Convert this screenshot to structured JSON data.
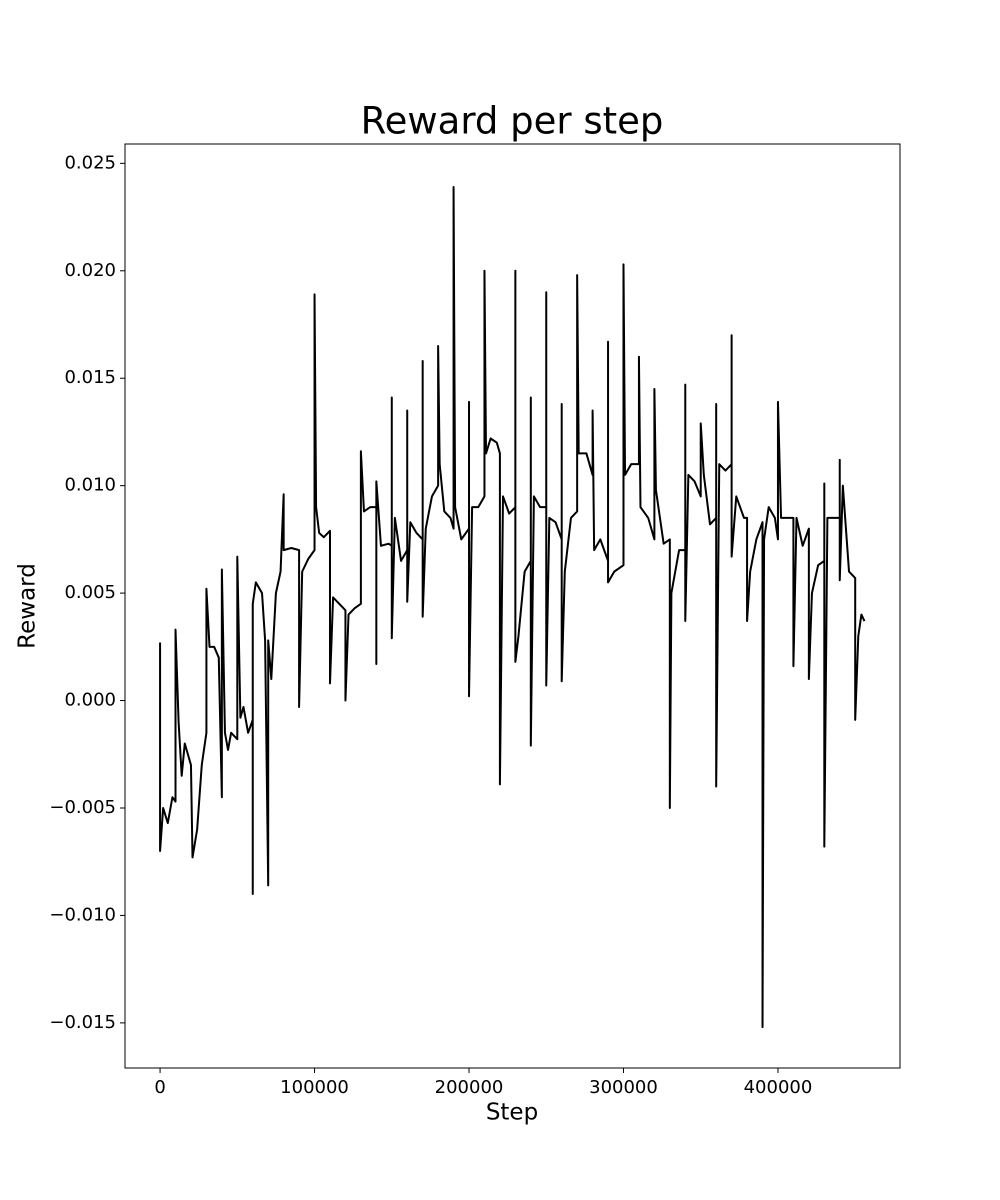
{
  "chart_data": {
    "type": "line",
    "title": "Reward per step",
    "xlabel": "Step",
    "ylabel": "Reward",
    "x": [
      0,
      0,
      2000,
      5000,
      8000,
      10000,
      10000,
      12000,
      14000,
      16000,
      20000,
      21000,
      24000,
      27000,
      30000,
      30000,
      32000,
      35000,
      38000,
      40000,
      40000,
      42000,
      44000,
      46000,
      50000,
      50000,
      52000,
      54000,
      57000,
      60000,
      60000,
      60000,
      62000,
      66000,
      68000,
      70000,
      70000,
      72000,
      75000,
      78000,
      80000,
      80000,
      85000,
      90000,
      90000,
      92000,
      96000,
      100000,
      100000,
      101000,
      103000,
      106000,
      110000,
      110000,
      112000,
      116000,
      120000,
      120000,
      122000,
      126000,
      130000,
      130000,
      132000,
      136000,
      140000,
      140000,
      140000,
      143000,
      148000,
      150000,
      150000,
      150000,
      152000,
      156000,
      160000,
      160000,
      160000,
      162000,
      166000,
      170000,
      170000,
      170000,
      172000,
      176000,
      180000,
      180000,
      181000,
      184000,
      188000,
      190000,
      190000,
      191000,
      195000,
      200000,
      200000,
      200000,
      202000,
      206000,
      210000,
      210000,
      211000,
      214000,
      218000,
      220000,
      220000,
      222000,
      226000,
      230000,
      230000,
      230000,
      232000,
      236000,
      240000,
      240000,
      240000,
      242000,
      246000,
      250000,
      250000,
      250000,
      252000,
      256000,
      260000,
      260000,
      260000,
      262000,
      266000,
      270000,
      270000,
      271000,
      276000,
      280000,
      280000,
      281000,
      285000,
      290000,
      290000,
      290000,
      294000,
      300000,
      300000,
      301000,
      305000,
      310000,
      310000,
      311000,
      316000,
      320000,
      320000,
      321000,
      326000,
      330000,
      330000,
      331000,
      336000,
      340000,
      340000,
      340000,
      342000,
      346000,
      350000,
      350000,
      352000,
      356000,
      360000,
      360000,
      360000,
      362000,
      366000,
      370000,
      370000,
      370000,
      373000,
      378000,
      380000,
      380000,
      382000,
      386000,
      390000,
      390000,
      391000,
      394000,
      398000,
      400000,
      400000,
      402000,
      406000,
      410000,
      410000,
      412000,
      416000,
      420000,
      420000,
      422000,
      426000,
      430000,
      430000,
      430000,
      432000,
      436000,
      440000,
      440000,
      440000,
      442000,
      446000,
      450000,
      450000,
      452000,
      454000,
      456000
    ],
    "series": [
      {
        "color": "#000000",
        "values": [
          0.0027,
          -0.007,
          -0.005,
          -0.0057,
          -0.0045,
          -0.0047,
          0.0033,
          -0.001,
          -0.0035,
          -0.002,
          -0.003,
          -0.0073,
          -0.006,
          -0.003,
          -0.0015,
          0.0052,
          0.0025,
          0.0025,
          0.002,
          -0.0045,
          0.0061,
          -0.0015,
          -0.0023,
          -0.0015,
          -0.0018,
          0.0067,
          -0.0008,
          -0.0003,
          -0.0015,
          -0.0009,
          -0.009,
          0.0045,
          0.0055,
          0.005,
          0.0028,
          -0.0086,
          0.0028,
          0.001,
          0.005,
          0.006,
          0.0096,
          0.007,
          0.0071,
          0.007,
          -0.0003,
          0.006,
          0.0066,
          0.007,
          0.0189,
          0.009,
          0.0078,
          0.0076,
          0.0079,
          0.0008,
          0.0048,
          0.0045,
          0.0042,
          0.0,
          0.004,
          0.0043,
          0.0045,
          0.0116,
          0.0088,
          0.009,
          0.009,
          0.0017,
          0.0102,
          0.0072,
          0.0073,
          0.0072,
          0.0141,
          0.0029,
          0.0085,
          0.0065,
          0.007,
          0.0135,
          0.0046,
          0.0083,
          0.0078,
          0.0075,
          0.0158,
          0.0039,
          0.008,
          0.0095,
          0.01,
          0.0165,
          0.011,
          0.0088,
          0.0085,
          0.008,
          0.0239,
          0.009,
          0.0075,
          0.008,
          0.0139,
          0.0002,
          0.009,
          0.009,
          0.0095,
          0.02,
          0.0115,
          0.0122,
          0.012,
          0.0115,
          -0.0039,
          0.0095,
          0.0087,
          0.009,
          0.02,
          0.0018,
          0.003,
          0.006,
          0.0065,
          0.0141,
          -0.0021,
          0.0095,
          0.009,
          0.009,
          0.019,
          0.0007,
          0.0085,
          0.0083,
          0.0075,
          0.0138,
          0.0009,
          0.006,
          0.0085,
          0.0088,
          0.0198,
          0.0115,
          0.0115,
          0.0105,
          0.0135,
          0.007,
          0.0075,
          0.0065,
          0.0167,
          0.0055,
          0.006,
          0.0063,
          0.0203,
          0.0105,
          0.011,
          0.011,
          0.016,
          0.009,
          0.0085,
          0.0075,
          0.0145,
          0.0098,
          0.0073,
          0.0075,
          -0.005,
          0.005,
          0.007,
          0.007,
          0.0147,
          0.0037,
          0.0105,
          0.0102,
          0.0095,
          0.0129,
          0.0105,
          0.0082,
          0.0085,
          0.0138,
          -0.004,
          0.011,
          0.0107,
          0.011,
          0.017,
          0.0067,
          0.0095,
          0.0085,
          0.0085,
          0.0037,
          0.006,
          0.0075,
          0.0083,
          -0.0152,
          0.0075,
          0.009,
          0.0085,
          0.0075,
          0.0139,
          0.0085,
          0.0085,
          0.0085,
          0.0016,
          0.0085,
          0.0072,
          0.008,
          0.001,
          0.005,
          0.0063,
          0.0065,
          0.0101,
          -0.0068,
          0.0085,
          0.0085,
          0.0085,
          0.0112,
          0.0056,
          0.01,
          0.006,
          0.0057,
          -0.0009,
          0.003,
          0.004,
          0.0037
        ]
      }
    ],
    "xlim": [
      -22700,
      479000
    ],
    "ylim": [
      -0.0171,
      0.0259
    ],
    "xticks": [
      0,
      100000,
      200000,
      300000,
      400000
    ],
    "yticks": [
      {
        "value": -0.015,
        "label": "−0.015"
      },
      {
        "value": -0.01,
        "label": "−0.010"
      },
      {
        "value": -0.005,
        "label": "−0.005"
      },
      {
        "value": 0,
        "label": "0.000"
      },
      {
        "value": 0.005,
        "label": "0.005"
      },
      {
        "value": 0.01,
        "label": "0.010"
      },
      {
        "value": 0.015,
        "label": "0.015"
      },
      {
        "value": 0.02,
        "label": "0.020"
      },
      {
        "value": 0.025,
        "label": "0.025"
      }
    ]
  }
}
